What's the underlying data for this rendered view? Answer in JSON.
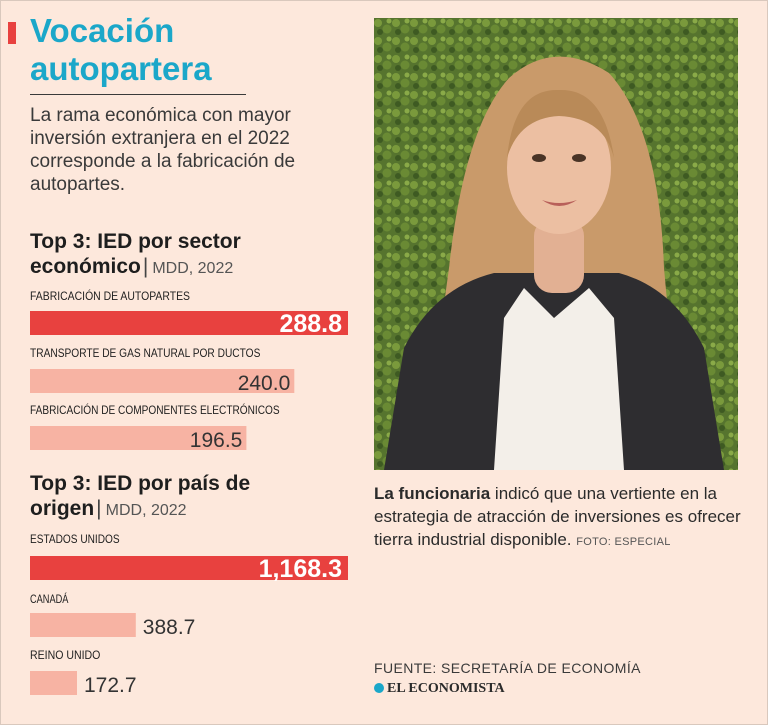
{
  "header": {
    "title_line1": "Vocación",
    "title_line2": "autopartera",
    "intro": "La rama económica con mayor inversión extranjera en el 2022 corresponde a la fabricación de autopartes."
  },
  "colors": {
    "top_bar": "#e8413f",
    "other_bar": "#f7b3a3",
    "title": "#1ba7c9",
    "background": "#fde8dc"
  },
  "chart_data": [
    {
      "type": "bar",
      "title_bold": "Top 3: IED por sector económico",
      "separator": "|",
      "unit": "MDD, 2022",
      "categories": [
        "FABRICACIÓN DE AUTOPARTES",
        "TRANSPORTE DE GAS NATURAL POR DUCTOS",
        "FABRICACIÓN DE COMPONENTES ELECTRÓNICOS"
      ],
      "values": [
        288.8,
        240.0,
        196.5
      ],
      "value_labels": [
        "288.8",
        "240.0",
        "196.5"
      ],
      "orientation": "horizontal"
    },
    {
      "type": "bar",
      "title_bold": "Top 3: IED por país de origen",
      "separator": "|",
      "unit": "MDD, 2022",
      "categories": [
        "ESTADOS UNIDOS",
        "CANADÁ",
        "REINO UNIDO"
      ],
      "values": [
        1168.3,
        388.7,
        172.7
      ],
      "value_labels": [
        "1,168.3",
        "388.7",
        "172.7"
      ],
      "orientation": "horizontal"
    }
  ],
  "photo": {
    "description_icon": "portrait-photo"
  },
  "caption": {
    "bold": "La funcionaria",
    "text": " indicó que una vertiente en la estrategia de atracción de inversiones es ofrecer tierra industrial disponible.",
    "credit": "FOTO: ESPECIAL"
  },
  "footer": {
    "source": "FUENTE: SECRETARÍA DE ECONOMÍA",
    "brand": "EL ECONOMISTA"
  }
}
